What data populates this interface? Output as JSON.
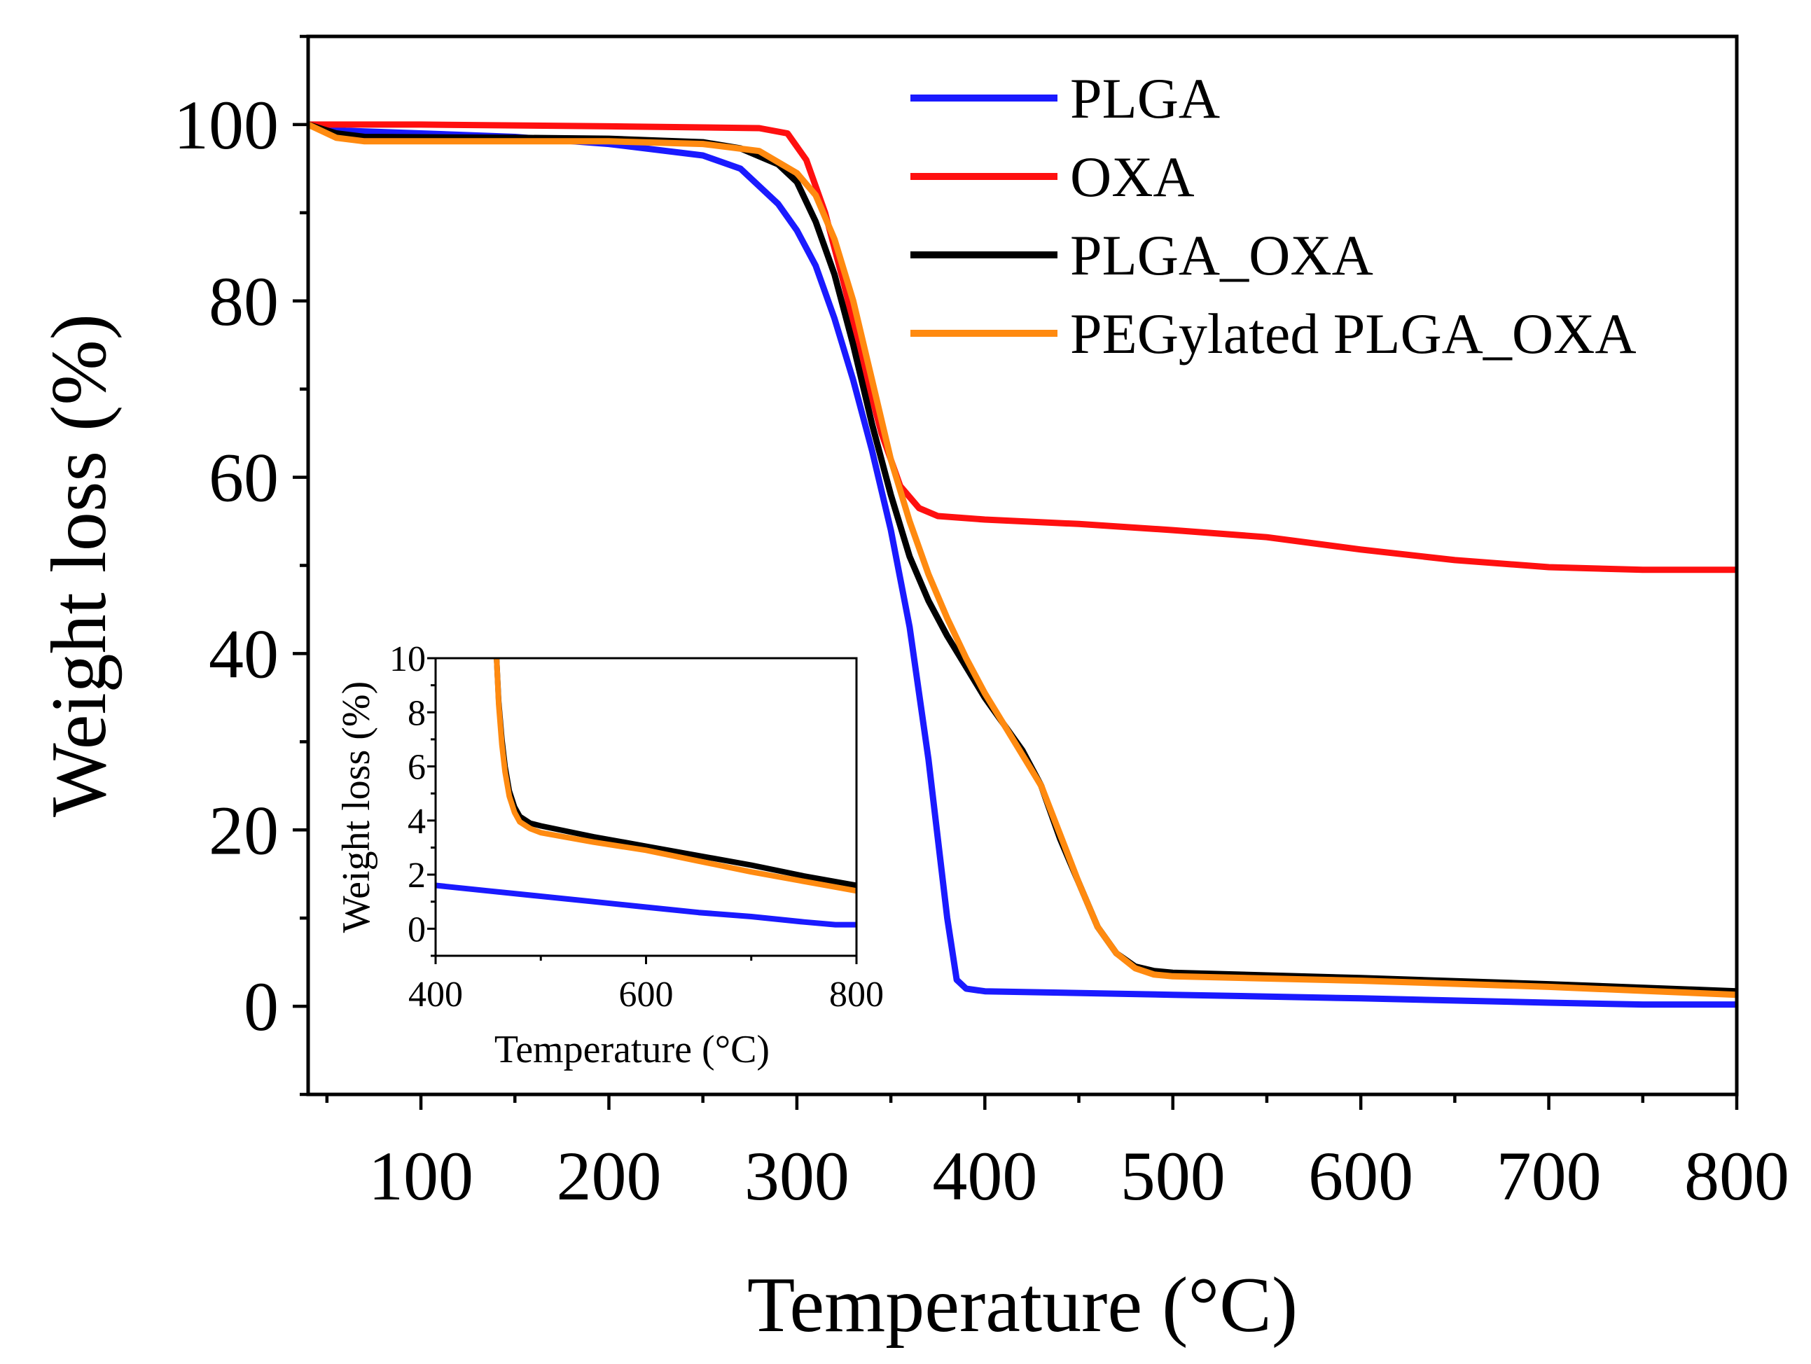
{
  "chart_data": [
    {
      "id": "main",
      "type": "line",
      "title": "",
      "xlabel": "Temperature (°C)",
      "ylabel": "Weight loss (%)",
      "xlim": [
        40,
        800
      ],
      "ylim": [
        -10,
        110
      ],
      "xticks": [
        100,
        200,
        300,
        400,
        500,
        600,
        700,
        800
      ],
      "yticks": [
        0,
        20,
        40,
        60,
        80,
        100
      ],
      "legend_position": "top-right",
      "series": [
        {
          "name": "PLGA",
          "color": "#1a1aff",
          "points": [
            [
              40,
              100
            ],
            [
              60,
              99.3
            ],
            [
              100,
              99
            ],
            [
              150,
              98.6
            ],
            [
              200,
              97.8
            ],
            [
              250,
              96.5
            ],
            [
              270,
              95
            ],
            [
              290,
              91
            ],
            [
              300,
              88
            ],
            [
              310,
              84
            ],
            [
              320,
              78
            ],
            [
              330,
              71
            ],
            [
              340,
              63
            ],
            [
              350,
              54
            ],
            [
              360,
              43
            ],
            [
              370,
              28
            ],
            [
              380,
              10
            ],
            [
              385,
              3
            ],
            [
              390,
              2
            ],
            [
              400,
              1.7
            ],
            [
              500,
              1.3
            ],
            [
              600,
              0.9
            ],
            [
              700,
              0.4
            ],
            [
              750,
              0.2
            ],
            [
              800,
              0.2
            ]
          ]
        },
        {
          "name": "OXA",
          "color": "#ff1010",
          "points": [
            [
              40,
              100
            ],
            [
              100,
              100
            ],
            [
              200,
              99.8
            ],
            [
              280,
              99.6
            ],
            [
              295,
              99
            ],
            [
              305,
              96
            ],
            [
              315,
              90
            ],
            [
              325,
              82
            ],
            [
              335,
              73
            ],
            [
              345,
              65
            ],
            [
              355,
              59
            ],
            [
              365,
              56.5
            ],
            [
              375,
              55.6
            ],
            [
              400,
              55.2
            ],
            [
              450,
              54.7
            ],
            [
              500,
              54
            ],
            [
              550,
              53.2
            ],
            [
              600,
              51.8
            ],
            [
              650,
              50.6
            ],
            [
              700,
              49.8
            ],
            [
              750,
              49.5
            ],
            [
              800,
              49.5
            ]
          ]
        },
        {
          "name": "PLGA_OXA",
          "color": "#000000",
          "points": [
            [
              40,
              100
            ],
            [
              55,
              99
            ],
            [
              70,
              98.6
            ],
            [
              150,
              98.5
            ],
            [
              200,
              98.4
            ],
            [
              250,
              98
            ],
            [
              270,
              97.3
            ],
            [
              290,
              95.5
            ],
            [
              300,
              93.5
            ],
            [
              310,
              89
            ],
            [
              320,
              83
            ],
            [
              330,
              75
            ],
            [
              340,
              66
            ],
            [
              350,
              58
            ],
            [
              360,
              51
            ],
            [
              370,
              46
            ],
            [
              380,
              42
            ],
            [
              390,
              38.5
            ],
            [
              400,
              35
            ],
            [
              410,
              32
            ],
            [
              420,
              29
            ],
            [
              430,
              25
            ],
            [
              440,
              19
            ],
            [
              450,
              14
            ],
            [
              460,
              9
            ],
            [
              470,
              6
            ],
            [
              480,
              4.5
            ],
            [
              490,
              4
            ],
            [
              500,
              3.8
            ],
            [
              600,
              3.2
            ],
            [
              700,
              2.5
            ],
            [
              800,
              1.7
            ]
          ]
        },
        {
          "name": "PEGylated PLGA_OXA",
          "color": "#ff8a10",
          "points": [
            [
              40,
              100
            ],
            [
              55,
              98.5
            ],
            [
              70,
              98.1
            ],
            [
              150,
              98.1
            ],
            [
              200,
              98.1
            ],
            [
              250,
              97.8
            ],
            [
              280,
              97
            ],
            [
              300,
              94.5
            ],
            [
              310,
              92
            ],
            [
              320,
              87
            ],
            [
              330,
              80
            ],
            [
              340,
              71
            ],
            [
              350,
              62
            ],
            [
              360,
              55
            ],
            [
              370,
              49
            ],
            [
              380,
              44
            ],
            [
              390,
              39.5
            ],
            [
              400,
              35.5
            ],
            [
              410,
              32
            ],
            [
              420,
              28.5
            ],
            [
              430,
              25
            ],
            [
              440,
              19.5
            ],
            [
              450,
              14
            ],
            [
              460,
              9
            ],
            [
              470,
              6
            ],
            [
              480,
              4.3
            ],
            [
              490,
              3.6
            ],
            [
              500,
              3.4
            ],
            [
              600,
              2.9
            ],
            [
              700,
              2.2
            ],
            [
              800,
              1.3
            ]
          ]
        }
      ]
    },
    {
      "id": "inset",
      "type": "line",
      "title": "",
      "xlabel": "Temperature (°C)",
      "ylabel": "Weight loss (%)",
      "xlim": [
        400,
        800
      ],
      "ylim": [
        -1,
        10
      ],
      "xticks": [
        400,
        600,
        800
      ],
      "yticks": [
        0,
        2,
        4,
        6,
        8,
        10
      ],
      "series": [
        {
          "name": "PLGA",
          "color": "#1a1aff",
          "points": [
            [
              400,
              1.6
            ],
            [
              450,
              1.4
            ],
            [
              500,
              1.2
            ],
            [
              550,
              1.0
            ],
            [
              600,
              0.8
            ],
            [
              650,
              0.6
            ],
            [
              700,
              0.45
            ],
            [
              750,
              0.25
            ],
            [
              780,
              0.15
            ],
            [
              800,
              0.15
            ]
          ]
        },
        {
          "name": "PLGA_OXA",
          "color": "#000000",
          "points": [
            [
              458,
              10
            ],
            [
              460,
              8.4
            ],
            [
              463,
              7
            ],
            [
              466,
              6
            ],
            [
              470,
              5.1
            ],
            [
              475,
              4.5
            ],
            [
              480,
              4.15
            ],
            [
              490,
              3.9
            ],
            [
              500,
              3.8
            ],
            [
              550,
              3.4
            ],
            [
              600,
              3.05
            ],
            [
              650,
              2.7
            ],
            [
              700,
              2.35
            ],
            [
              750,
              1.95
            ],
            [
              800,
              1.6
            ]
          ]
        },
        {
          "name": "PEGylated PLGA_OXA",
          "color": "#ff8a10",
          "points": [
            [
              458,
              10
            ],
            [
              460,
              8.3
            ],
            [
              463,
              6.8
            ],
            [
              466,
              5.8
            ],
            [
              470,
              4.9
            ],
            [
              475,
              4.3
            ],
            [
              480,
              3.95
            ],
            [
              490,
              3.7
            ],
            [
              500,
              3.55
            ],
            [
              550,
              3.2
            ],
            [
              600,
              2.9
            ],
            [
              650,
              2.5
            ],
            [
              700,
              2.1
            ],
            [
              750,
              1.75
            ],
            [
              800,
              1.4
            ]
          ]
        }
      ]
    }
  ]
}
